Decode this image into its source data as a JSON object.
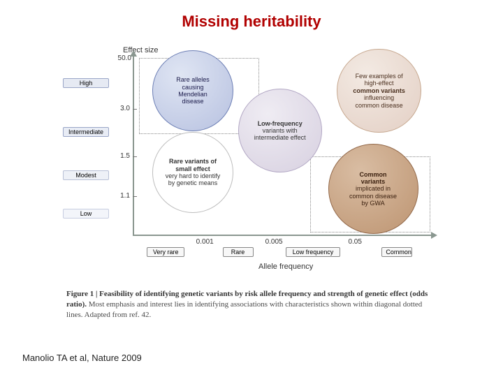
{
  "title": "Missing heritability",
  "title_color": "#b10000",
  "citation": "Manolio TA et al, Nature 2009",
  "y_axis": {
    "label": "Effect size",
    "top_value": "50.0",
    "ticks": [
      {
        "value": "3.0",
        "y_pct": 30
      },
      {
        "value": "1.5",
        "y_pct": 56
      },
      {
        "value": "1.1",
        "y_pct": 78
      }
    ],
    "category_boxes": [
      {
        "label": "High",
        "center_pct": 16,
        "bg": "#e6eaf3",
        "border": "#9aa6c7"
      },
      {
        "label": "Intermediate",
        "center_pct": 43,
        "bg": "#e8ecf5",
        "border": "#9aa6c7"
      },
      {
        "label": "Modest",
        "center_pct": 67,
        "bg": "#eef1f7",
        "border": "#b8c0d6"
      },
      {
        "label": "Low",
        "center_pct": 88,
        "bg": "#f3f5fa",
        "border": "#c7cde0"
      }
    ]
  },
  "x_axis": {
    "label": "Allele frequency",
    "ticks": [
      {
        "value": "0.001",
        "x_pct": 24
      },
      {
        "value": "0.005",
        "x_pct": 47
      },
      {
        "value": "0.05",
        "x_pct": 74
      }
    ],
    "category_boxes": [
      {
        "label": "Very rare",
        "center_pct": 11,
        "bg": "#f7f7f7"
      },
      {
        "label": "Rare",
        "center_pct": 35,
        "bg": "#f7f7f7"
      },
      {
        "label": "Low frequency",
        "center_pct": 60,
        "bg": "#f7f7f7"
      },
      {
        "label": "Common",
        "center_pct": 88,
        "bg": "#f7f7f7"
      }
    ]
  },
  "diagonal_boxes": [
    {
      "left_pct": 2,
      "top_pct": 2,
      "w_pct": 40,
      "h_pct": 42
    },
    {
      "left_pct": 59,
      "top_pct": 56,
      "w_pct": 40,
      "h_pct": 42
    }
  ],
  "bubbles": [
    {
      "id": "mendelian",
      "lines": [
        "Rare alleles",
        "causing",
        "Mendelian",
        "disease"
      ],
      "bold_idx": [],
      "cx_pct": 20,
      "cy_pct": 20,
      "d_pct": 27,
      "fill": "#b7c1e0",
      "stroke": "#6d7fb5",
      "text_color": "#1a1a4a",
      "gradient_to": "#dfe5f3"
    },
    {
      "id": "lowfreq",
      "lines": [
        "Low-frequency",
        "variants with",
        "intermediate effect"
      ],
      "bold_idx": [
        0
      ],
      "cx_pct": 49,
      "cy_pct": 42,
      "d_pct": 28,
      "fill": "#d7d0e0",
      "stroke": "#b2a7c4",
      "text_color": "#333",
      "gradient_to": "#efecf3"
    },
    {
      "id": "high-effect-common",
      "lines": [
        "Few examples of",
        "high-effect",
        "common variants",
        "influencing",
        "common disease"
      ],
      "bold_idx": [
        2
      ],
      "cx_pct": 82,
      "cy_pct": 20,
      "d_pct": 28,
      "fill": "#e3cfc4",
      "stroke": "#c7a88f",
      "text_color": "#4a2f1e",
      "gradient_to": "#f3eae3"
    },
    {
      "id": "rare-small",
      "lines": [
        "Rare variants of",
        "small effect",
        "very hard to identify",
        "by genetic means"
      ],
      "bold_idx": [
        0,
        1
      ],
      "cx_pct": 20,
      "cy_pct": 65,
      "d_pct": 27,
      "fill": "#ffffff",
      "stroke": "#bdbdbd",
      "text_color": "#333",
      "gradient_to": "#ffffff"
    },
    {
      "id": "gwa",
      "lines": [
        "Common",
        "variants",
        "implicated in",
        "common disease",
        "by GWA"
      ],
      "bold_idx": [
        0,
        1
      ],
      "cx_pct": 80,
      "cy_pct": 74,
      "d_pct": 30,
      "fill": "#bd9471",
      "stroke": "#93694a",
      "text_color": "#3a1f0e",
      "gradient_to": "#d9bda3"
    }
  ],
  "caption": {
    "lead": "Figure 1 | Feasibility of identifying genetic variants by risk allele frequency and strength of genetic effect (odds ratio).",
    "body": " Most emphasis and interest lies in identifying associations with characteristics shown within diagonal dotted lines. Adapted from ref. 42."
  }
}
